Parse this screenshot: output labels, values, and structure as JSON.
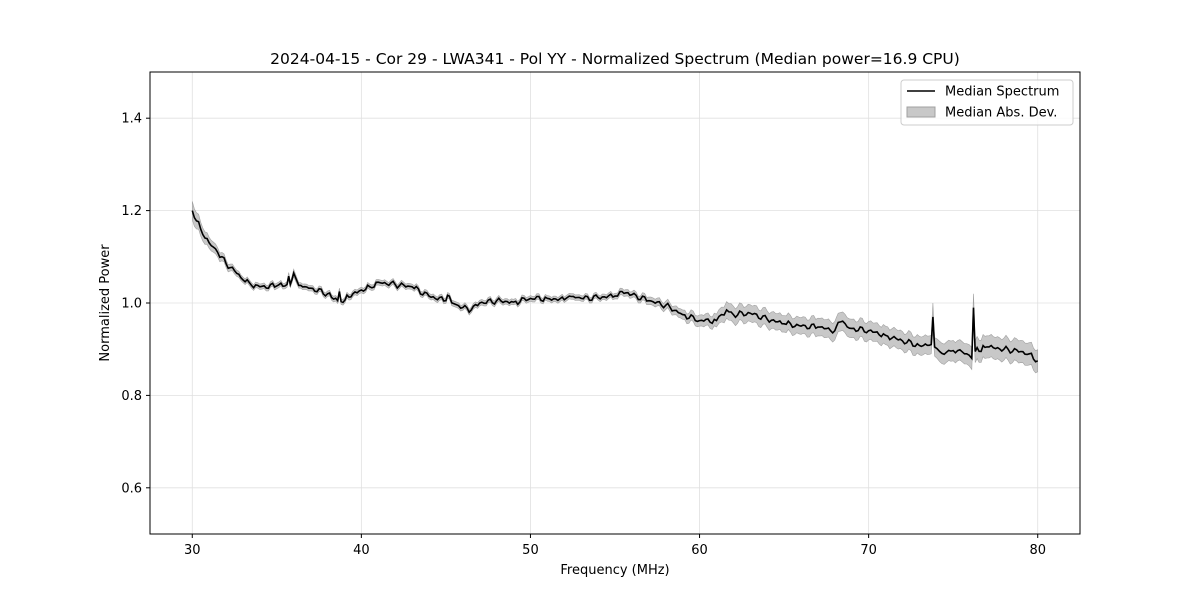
{
  "chart_data": {
    "type": "line",
    "title": "2024-04-15 - Cor 29 - LWA341 - Pol YY - Normalized Spectrum (Median power=16.9 CPU)",
    "xlabel": "Frequency (MHz)",
    "ylabel": "Normalized Power",
    "xlim": [
      27.5,
      82.5
    ],
    "ylim": [
      0.5,
      1.5
    ],
    "xticks": [
      30,
      40,
      50,
      60,
      70,
      80
    ],
    "yticks": [
      0.6,
      0.8,
      1.0,
      1.2,
      1.4
    ],
    "ytick_labels": [
      "0.6",
      "0.8",
      "1.0",
      "1.2",
      "1.4"
    ],
    "grid": true,
    "legend_position": "top-right",
    "legend": [
      "Median Spectrum",
      "Median Abs. Dev."
    ],
    "colors": {
      "line": "#000000",
      "band": "#c8c8c8",
      "band_edge": "#a0a0a0",
      "grid": "#e0e0e0"
    },
    "series": [
      {
        "name": "Median Spectrum",
        "x": [
          30.0,
          30.5,
          31.0,
          31.5,
          32.0,
          32.5,
          33.0,
          33.5,
          34.0,
          35.0,
          35.6,
          35.7,
          35.8,
          36.0,
          36.3,
          37.0,
          38.0,
          38.6,
          38.7,
          38.8,
          39.5,
          40.5,
          41.0,
          42.0,
          43.0,
          44.0,
          45.0,
          45.2,
          45.5,
          46.0,
          46.5,
          47.0,
          48.0,
          49.0,
          50.0,
          51.0,
          52.0,
          52.3,
          53.0,
          54.0,
          55.0,
          55.3,
          56.0,
          57.0,
          58.0,
          59.0,
          60.0,
          61.0,
          61.3,
          61.6,
          62.0,
          63.0,
          64.0,
          65.0,
          66.0,
          67.0,
          68.0,
          68.2,
          69.0,
          70.0,
          71.0,
          72.0,
          73.0,
          73.7,
          73.8,
          73.9,
          74.2,
          75.0,
          75.8,
          76.1,
          76.2,
          76.3,
          77.0,
          78.0,
          79.0,
          79.5,
          80.0
        ],
        "y": [
          1.2,
          1.16,
          1.13,
          1.11,
          1.085,
          1.07,
          1.05,
          1.038,
          1.035,
          1.037,
          1.04,
          1.058,
          1.04,
          1.065,
          1.038,
          1.032,
          1.02,
          1.005,
          1.025,
          1.003,
          1.02,
          1.035,
          1.045,
          1.04,
          1.035,
          1.015,
          1.005,
          1.015,
          0.998,
          0.99,
          0.985,
          1.0,
          1.005,
          1.002,
          1.01,
          1.01,
          1.007,
          1.015,
          1.01,
          1.012,
          1.015,
          1.025,
          1.018,
          1.005,
          0.995,
          0.975,
          0.962,
          0.962,
          0.975,
          0.985,
          0.975,
          0.978,
          0.965,
          0.955,
          0.95,
          0.948,
          0.94,
          0.958,
          0.945,
          0.94,
          0.93,
          0.918,
          0.908,
          0.91,
          0.97,
          0.905,
          0.895,
          0.897,
          0.89,
          0.88,
          0.99,
          0.895,
          0.905,
          0.9,
          0.895,
          0.89,
          0.875
        ]
      },
      {
        "name": "Median Abs. Dev.",
        "mad": [
          0.02,
          0.015,
          0.012,
          0.01,
          0.008,
          0.007,
          0.006,
          0.006,
          0.006,
          0.006,
          0.006,
          0.008,
          0.006,
          0.008,
          0.006,
          0.006,
          0.006,
          0.006,
          0.007,
          0.006,
          0.006,
          0.006,
          0.006,
          0.006,
          0.006,
          0.006,
          0.006,
          0.006,
          0.006,
          0.006,
          0.006,
          0.006,
          0.006,
          0.006,
          0.006,
          0.006,
          0.006,
          0.006,
          0.006,
          0.006,
          0.006,
          0.007,
          0.007,
          0.008,
          0.009,
          0.01,
          0.012,
          0.014,
          0.016,
          0.018,
          0.018,
          0.018,
          0.018,
          0.018,
          0.018,
          0.019,
          0.02,
          0.02,
          0.02,
          0.02,
          0.02,
          0.02,
          0.02,
          0.02,
          0.03,
          0.02,
          0.022,
          0.022,
          0.022,
          0.024,
          0.03,
          0.024,
          0.024,
          0.024,
          0.024,
          0.024,
          0.024
        ]
      }
    ]
  }
}
